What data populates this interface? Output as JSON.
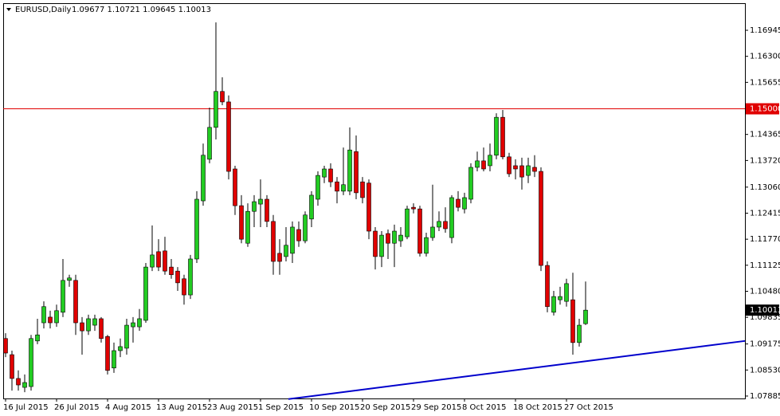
{
  "chart_data": {
    "type": "candlestick",
    "title": "EURUSD,Daily",
    "info": "1.09677 1.10721 1.09645 1.10013",
    "categories": [
      "16 Jul 2015",
      null,
      null,
      null,
      null,
      null,
      null,
      null,
      "26 Jul 2015",
      null,
      null,
      null,
      null,
      null,
      null,
      null,
      "4 Aug 2015",
      null,
      null,
      null,
      null,
      null,
      null,
      null,
      "13 Aug 2015",
      null,
      null,
      null,
      null,
      null,
      null,
      null,
      "23 Aug 2015",
      null,
      null,
      null,
      null,
      null,
      null,
      null,
      "1 Sep 2015",
      null,
      null,
      null,
      null,
      null,
      null,
      null,
      "10 Sep 2015",
      null,
      null,
      null,
      null,
      null,
      null,
      null,
      "20 Sep 2015",
      null,
      null,
      null,
      null,
      null,
      null,
      null,
      "29 Sep 2015",
      null,
      null,
      null,
      null,
      null,
      null,
      null,
      "8 Oct 2015",
      null,
      null,
      null,
      null,
      null,
      null,
      null,
      "18 Oct 2015",
      null,
      null,
      null,
      null,
      null,
      null,
      null,
      "27 Oct 2015",
      null,
      null,
      null
    ],
    "open": [
      1.0931,
      1.0891,
      1.0832,
      1.081,
      1.0812,
      1.0925,
      1.097,
      1.0984,
      1.097,
      1.0996,
      1.1075,
      1.1075,
      1.097,
      1.095,
      1.0964,
      1.098,
      1.0936,
      1.0858,
      1.0901,
      1.0907,
      1.096,
      1.096,
      1.0976,
      1.1108,
      1.1146,
      1.1148,
      1.1108,
      1.1098,
      1.1079,
      1.1039,
      1.1128,
      1.1272,
      1.1375,
      1.1454,
      1.1543,
      1.1517,
      1.1351,
      1.126,
      1.1167,
      1.1246,
      1.1264,
      1.1276,
      1.1221,
      1.1142,
      1.1134,
      1.1142,
      1.1201,
      1.1173,
      1.1227,
      1.1276,
      1.1331,
      1.1351,
      1.1319,
      1.1296,
      1.1296,
      1.1394,
      1.1319,
      1.1316,
      1.1197,
      1.1134,
      1.1191,
      1.1167,
      1.1173,
      1.1183,
      1.1256,
      1.1252,
      1.1142,
      1.1181,
      1.1207,
      1.1221,
      1.1181,
      1.1276,
      1.1252,
      1.1276,
      1.1355,
      1.1371,
      1.1359,
      1.1385,
      1.1479,
      1.1381,
      1.1359,
      1.1359,
      1.1335,
      1.1355,
      1.1345,
      1.1112,
      1.0996,
      1.1027,
      1.1023,
      1.1027,
      1.0921,
      1.09677
    ],
    "high": [
      1.0944,
      1.0901,
      1.0852,
      1.0842,
      1.094,
      1.098,
      1.1023,
      1.1,
      1.1015,
      1.1128,
      1.1089,
      1.1089,
      1.0984,
      1.099,
      1.099,
      1.0984,
      1.094,
      1.0921,
      1.0931,
      1.098,
      1.0984,
      1.1004,
      1.1118,
      1.1211,
      1.1177,
      1.1183,
      1.1128,
      1.1108,
      1.1089,
      1.1138,
      1.1296,
      1.1414,
      1.1503,
      1.1714,
      1.1578,
      1.1533,
      1.1359,
      1.1286,
      1.1266,
      1.1286,
      1.1325,
      1.1286,
      1.1237,
      1.1177,
      1.1207,
      1.1221,
      1.1221,
      1.1246,
      1.1296,
      1.1345,
      1.1359,
      1.1365,
      1.1331,
      1.1404,
      1.1454,
      1.1434,
      1.1331,
      1.1325,
      1.1207,
      1.1197,
      1.1201,
      1.1213,
      1.1207,
      1.126,
      1.1266,
      1.126,
      1.1193,
      1.1312,
      1.1246,
      1.1256,
      1.1286,
      1.1296,
      1.1292,
      1.1365,
      1.1394,
      1.1404,
      1.1414,
      1.1489,
      1.1497,
      1.1391,
      1.1375,
      1.1379,
      1.1379,
      1.1385,
      1.1355,
      1.1122,
      1.1049,
      1.1059,
      1.1079,
      1.1094,
      1.098,
      1.10721
    ],
    "low": [
      1.0885,
      1.0802,
      1.0802,
      1.0798,
      1.0802,
      1.0917,
      1.0956,
      1.0956,
      1.096,
      1.0984,
      1.1059,
      1.094,
      1.0891,
      1.094,
      1.095,
      1.0921,
      1.0842,
      1.0846,
      1.0885,
      1.0891,
      1.0921,
      1.095,
      1.097,
      1.1098,
      1.1098,
      1.1089,
      1.1079,
      1.1049,
      1.1015,
      1.1029,
      1.1118,
      1.126,
      1.1365,
      1.1424,
      1.1509,
      1.1325,
      1.1237,
      1.1167,
      1.1158,
      1.1207,
      1.1207,
      1.1207,
      1.1089,
      1.1089,
      1.1122,
      1.1118,
      1.1158,
      1.1167,
      1.1207,
      1.126,
      1.1316,
      1.1306,
      1.1266,
      1.1286,
      1.1286,
      1.1276,
      1.1266,
      1.1177,
      1.1102,
      1.1108,
      1.1128,
      1.1108,
      1.1158,
      1.1177,
      1.1241,
      1.1134,
      1.1134,
      1.1173,
      1.1197,
      1.1193,
      1.1167,
      1.1246,
      1.1241,
      1.1266,
      1.1345,
      1.1345,
      1.1345,
      1.1375,
      1.1375,
      1.1331,
      1.1325,
      1.13,
      1.1316,
      1.1331,
      1.1098,
      1.0996,
      1.0988,
      1.1015,
      1.101,
      1.0891,
      1.0911,
      1.09645
    ],
    "close": [
      1.0895,
      1.0832,
      1.0816,
      1.0822,
      1.0931,
      1.094,
      1.101,
      1.097,
      1.1,
      1.1075,
      1.1081,
      1.097,
      1.095,
      1.098,
      1.098,
      1.0931,
      1.0852,
      1.0901,
      1.0911,
      1.0964,
      1.097,
      1.098,
      1.1108,
      1.1138,
      1.1108,
      1.1098,
      1.1089,
      1.1069,
      1.1039,
      1.1128,
      1.1276,
      1.1385,
      1.1454,
      1.1543,
      1.1517,
      1.1345,
      1.126,
      1.1177,
      1.1246,
      1.127,
      1.1276,
      1.1221,
      1.1122,
      1.1122,
      1.1162,
      1.1207,
      1.1173,
      1.1237,
      1.1286,
      1.1335,
      1.1351,
      1.1319,
      1.1296,
      1.1312,
      1.1398,
      1.1292,
      1.128,
      1.1197,
      1.1134,
      1.1187,
      1.1167,
      1.1197,
      1.1187,
      1.1252,
      1.1252,
      1.1142,
      1.1181,
      1.1207,
      1.1221,
      1.1203,
      1.128,
      1.1256,
      1.128,
      1.1355,
      1.1371,
      1.1351,
      1.1385,
      1.1479,
      1.1381,
      1.1339,
      1.1351,
      1.1331,
      1.1359,
      1.1345,
      1.1112,
      1.101,
      1.1035,
      1.1035,
      1.1067,
      1.0921,
      1.0964,
      1.10013
    ],
    "up_color": "#22cc22",
    "down_color": "#e00000",
    "ylim": [
      1.07825,
      1.17616
    ],
    "yticks": [
      1.16945,
      {
        "value": 1.163,
        "label": "1.16300"
      },
      1.15655,
      1.14365,
      {
        "value": 1.1372,
        "label": "1.13720"
      },
      {
        "value": 1.1306,
        "label": "1.13060"
      },
      1.12415,
      {
        "value": 1.1177,
        "label": "1.11770"
      },
      1.11125,
      {
        "value": 1.1048,
        "label": "1.10480"
      },
      1.09835,
      1.09175,
      {
        "value": 1.0853,
        "label": "1.08530"
      },
      1.07885
    ],
    "level": {
      "value": 1.15,
      "label": "1.15000",
      "color": "#e00000"
    },
    "last_price": 1.10013,
    "trendline": {
      "values": [
        1.0781,
        1.0925
      ],
      "color": "#0000cc"
    }
  }
}
